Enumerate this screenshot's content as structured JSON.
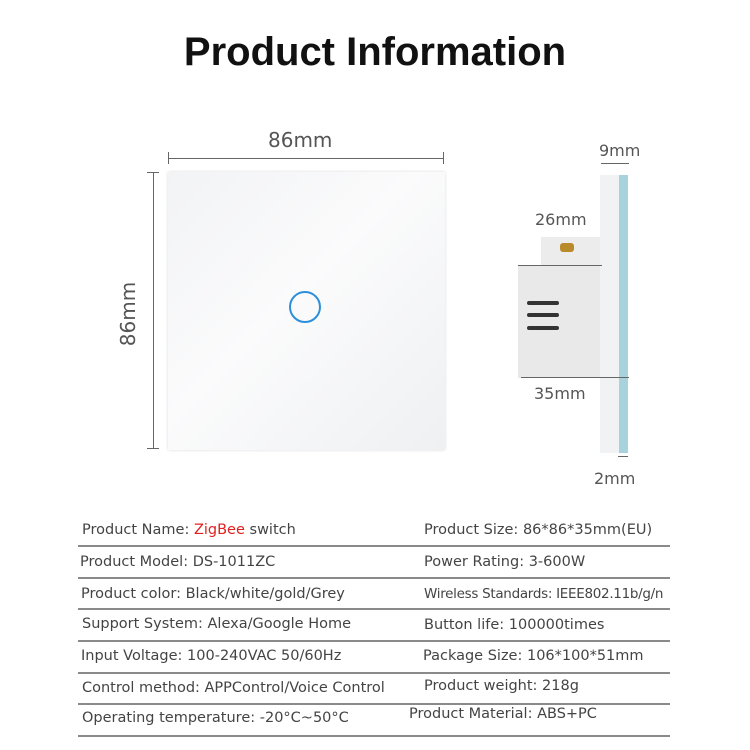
{
  "title": "Product Information",
  "dimensions": {
    "front_width": "86mm",
    "front_height": "86mm",
    "plate_depth": "9mm",
    "body_depth": "26mm",
    "total_depth": "35mm",
    "glass": "2mm"
  },
  "colors": {
    "button_ring": "#2c8fdb",
    "highlight": "#e02020",
    "glass_edge": "#a9d3dc"
  },
  "specs": {
    "left": [
      {
        "label": "Product Name:",
        "value_highlight": "ZigBee",
        "value": " switch"
      },
      {
        "label": "Product Model:",
        "value": "DS-1011ZC"
      },
      {
        "label": "Product color:",
        "value": "Black/white/gold/Grey"
      },
      {
        "label": "Support System:",
        "value": "Alexa/Google Home"
      },
      {
        "label": "Input Voltage:",
        "value": "100-240VAC 50/60Hz"
      },
      {
        "label": "Control method:",
        "value": "APPControl/Voice Control"
      },
      {
        "label": "Operating temperature:",
        "value": "-20°C~50°C"
      }
    ],
    "right": [
      {
        "label": "Product Size:",
        "value": "86*86*35mm(EU)"
      },
      {
        "label": "Power Rating:",
        "value": "3-600W"
      },
      {
        "label": "Wireless Standards:",
        "value": "IEEE802.11b/g/n"
      },
      {
        "label": "Button life:",
        "value": "100000times"
      },
      {
        "label": "Package Size:",
        "value": "106*100*51mm"
      },
      {
        "label": "Product weight:",
        "value": "218g"
      },
      {
        "label": "Product Material:",
        "value": "ABS+PC"
      }
    ]
  }
}
